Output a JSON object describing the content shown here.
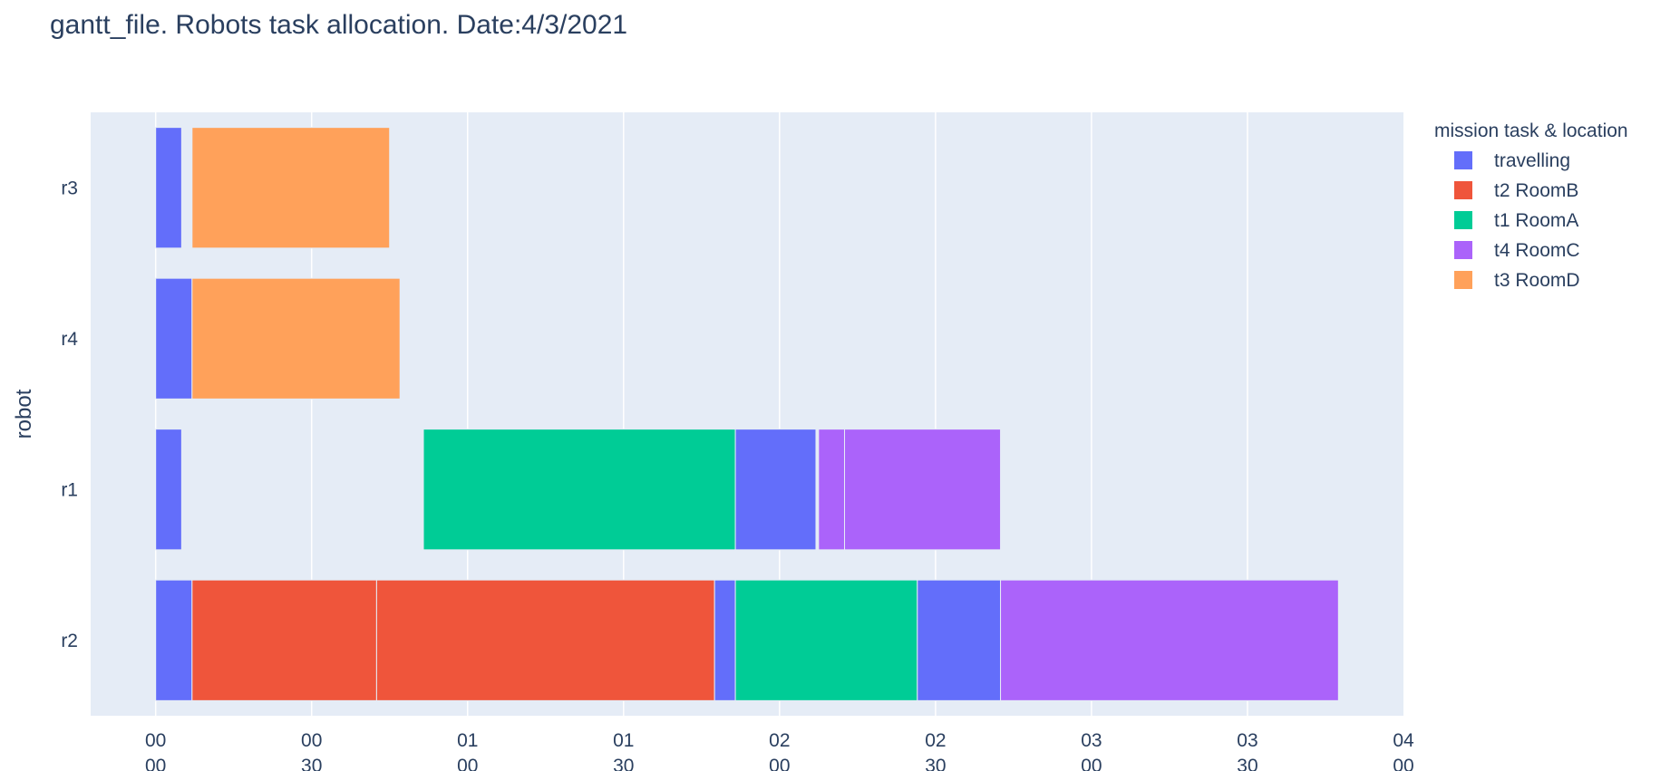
{
  "chart_data": {
    "type": "gantt",
    "title": "gantt_file. Robots task allocation. Date:4/3/2021",
    "ylabel": "robot",
    "xlabel": "",
    "x_unit": "minutes",
    "xlim": [
      -12.5,
      240
    ],
    "x_ticks": [
      {
        "value": 0,
        "line1": "00",
        "line2": "00"
      },
      {
        "value": 30,
        "line1": "00",
        "line2": "30"
      },
      {
        "value": 60,
        "line1": "01",
        "line2": "00"
      },
      {
        "value": 90,
        "line1": "01",
        "line2": "30"
      },
      {
        "value": 120,
        "line1": "02",
        "line2": "00"
      },
      {
        "value": 150,
        "line1": "02",
        "line2": "30"
      },
      {
        "value": 180,
        "line1": "03",
        "line2": "00"
      },
      {
        "value": 210,
        "line1": "03",
        "line2": "30"
      },
      {
        "value": 240,
        "line1": "04",
        "line2": "00"
      }
    ],
    "robots": [
      "r3",
      "r4",
      "r1",
      "r2"
    ],
    "legend": {
      "title": "mission task & location",
      "position": "right",
      "entries": [
        {
          "key": "travelling",
          "label": "travelling",
          "color": "#636efa"
        },
        {
          "key": "t2",
          "label": "t2 RoomB",
          "color": "#ef553b"
        },
        {
          "key": "t1",
          "label": "t1 RoomA",
          "color": "#00cc96"
        },
        {
          "key": "t4",
          "label": "t4 RoomC",
          "color": "#ab63fa"
        },
        {
          "key": "t3",
          "label": "t3 RoomD",
          "color": "#ffa15a"
        }
      ]
    },
    "tasks": [
      {
        "robot": "r3",
        "task": "travelling",
        "start": 0,
        "end": 5
      },
      {
        "robot": "r3",
        "task": "t3",
        "start": 7,
        "end": 45
      },
      {
        "robot": "r4",
        "task": "travelling",
        "start": 0,
        "end": 7
      },
      {
        "robot": "r4",
        "task": "t3",
        "start": 7,
        "end": 47
      },
      {
        "robot": "r1",
        "task": "travelling",
        "start": 0,
        "end": 5
      },
      {
        "robot": "r1",
        "task": "t1",
        "start": 51.5,
        "end": 111.5
      },
      {
        "robot": "r1",
        "task": "travelling",
        "start": 111.5,
        "end": 127
      },
      {
        "robot": "r1",
        "task": "t4",
        "start": 127.5,
        "end": 132.5
      },
      {
        "robot": "r1",
        "task": "t4",
        "start": 132.5,
        "end": 162.5
      },
      {
        "robot": "r2",
        "task": "travelling",
        "start": 0,
        "end": 7
      },
      {
        "robot": "r2",
        "task": "t2",
        "start": 7,
        "end": 42.5
      },
      {
        "robot": "r2",
        "task": "t2",
        "start": 42.5,
        "end": 107.5
      },
      {
        "robot": "r2",
        "task": "travelling",
        "start": 107.5,
        "end": 111.5
      },
      {
        "robot": "r2",
        "task": "t1",
        "start": 111.5,
        "end": 146.5
      },
      {
        "robot": "r2",
        "task": "travelling",
        "start": 146.5,
        "end": 162.5
      },
      {
        "robot": "r2",
        "task": "t4",
        "start": 162.5,
        "end": 227.5
      }
    ],
    "grid": true,
    "plot_bg": "#e5ecf6",
    "grid_color": "#ffffff"
  }
}
